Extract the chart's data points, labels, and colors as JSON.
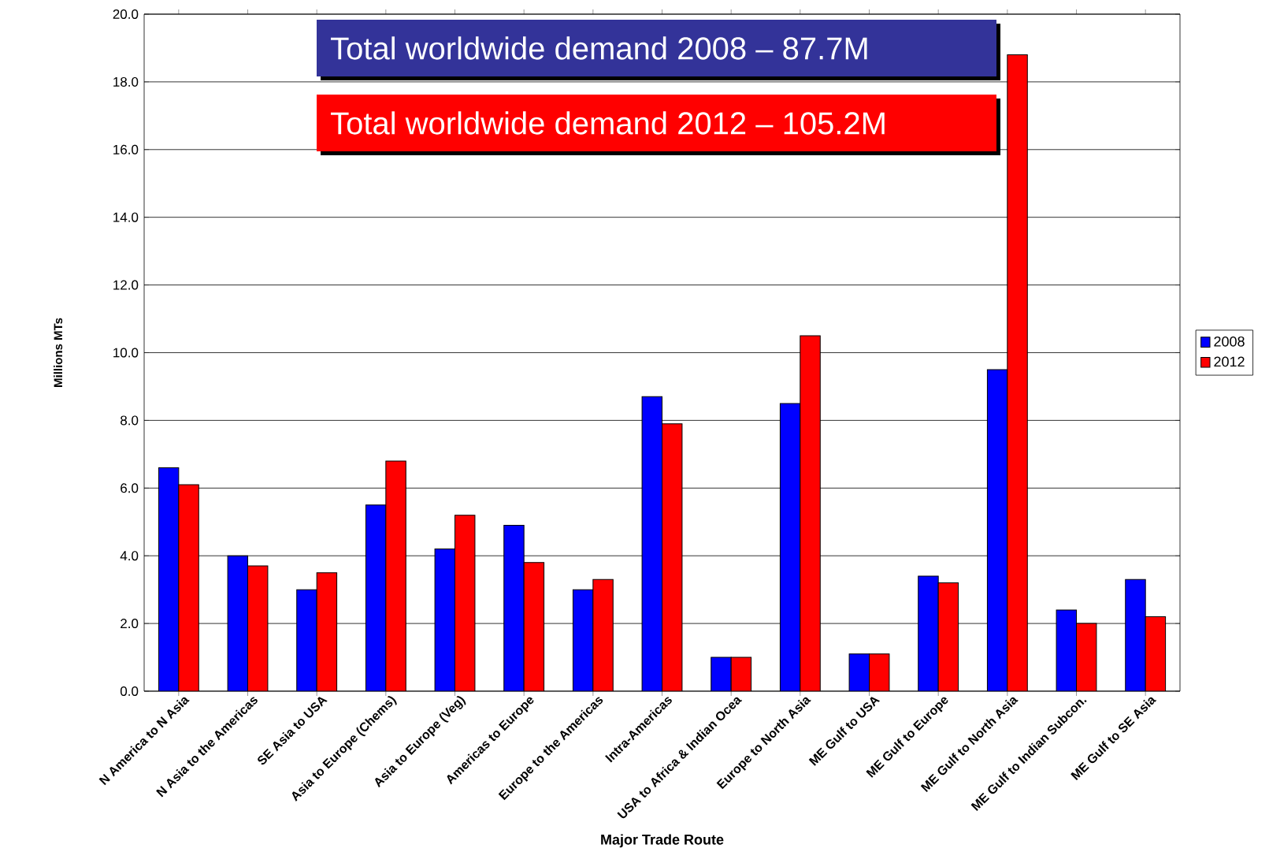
{
  "chart_data": {
    "type": "bar",
    "xlabel": "Major Trade Route",
    "ylabel": "Millions MTs",
    "annotations": [
      "Total worldwide demand 2008 – 87.7M",
      "Total worldwide demand 2012 – 105.2M"
    ],
    "categories": [
      "N America to N Asia",
      "N Asia to the Americas",
      "SE Asia to USA",
      "Asia to Europe (Chems)",
      "Asia to Europe (Veg)",
      "Americas to Europe",
      "Europe to the Americas",
      "Intra-Americas",
      "USA to Africa & Indian Ocea",
      "Europe to North Asia",
      "ME Gulf to USA",
      "ME Gulf to Europe",
      "ME Gulf to North Asia",
      "ME Gulf to Indian Subcon.",
      "ME Gulf to SE Asia"
    ],
    "series": [
      {
        "name": "2008",
        "color": "#0000ff",
        "values": [
          6.6,
          4.0,
          3.0,
          5.5,
          4.2,
          4.9,
          3.0,
          8.7,
          1.0,
          8.5,
          1.1,
          3.4,
          9.5,
          2.4,
          3.3
        ]
      },
      {
        "name": "2012",
        "color": "#ff0000",
        "values": [
          6.1,
          3.7,
          3.5,
          6.8,
          5.2,
          3.8,
          3.3,
          7.9,
          1.0,
          10.5,
          1.1,
          3.2,
          18.8,
          2.0,
          2.2
        ]
      }
    ],
    "ylim": [
      0,
      20
    ],
    "yticks": [
      {
        "value": 0,
        "label": "0.0"
      },
      {
        "value": 2,
        "label": "2.0"
      },
      {
        "value": 4,
        "label": "4.0"
      },
      {
        "value": 6,
        "label": "6.0"
      },
      {
        "value": 8,
        "label": "8.0"
      },
      {
        "value": 10,
        "label": "10.0"
      },
      {
        "value": 12,
        "label": "12.0"
      },
      {
        "value": 14,
        "label": "14.0"
      },
      {
        "value": 16,
        "label": "16.0"
      },
      {
        "value": 18,
        "label": "18.0"
      },
      {
        "value": 20,
        "label": "20.0"
      }
    ],
    "grid": "y",
    "legend": "right"
  }
}
